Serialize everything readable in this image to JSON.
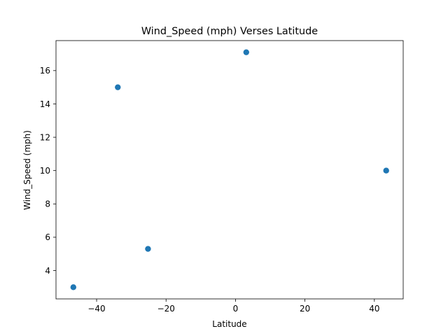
{
  "chart_data": {
    "type": "scatter",
    "title": "Wind_Speed (mph) Verses Latitude",
    "xlabel": "Latitude",
    "ylabel": "Wind_Speed (mph)",
    "x": [
      -46.7,
      -33.9,
      -25.2,
      3.1,
      43.4
    ],
    "y": [
      3.0,
      15.0,
      5.3,
      17.1,
      10.0
    ],
    "xlim": [
      -51.7,
      48.3
    ],
    "ylim": [
      2.3,
      17.8
    ],
    "xticks": [
      -40,
      -20,
      0,
      20,
      40
    ],
    "yticks": [
      4,
      6,
      8,
      10,
      12,
      14,
      16
    ],
    "xtick_labels": [
      "−40",
      "−20",
      "0",
      "20",
      "40"
    ],
    "ytick_labels": [
      "4",
      "6",
      "8",
      "10",
      "12",
      "14",
      "16"
    ],
    "grid": false,
    "marker_color": "#1f77b4"
  }
}
